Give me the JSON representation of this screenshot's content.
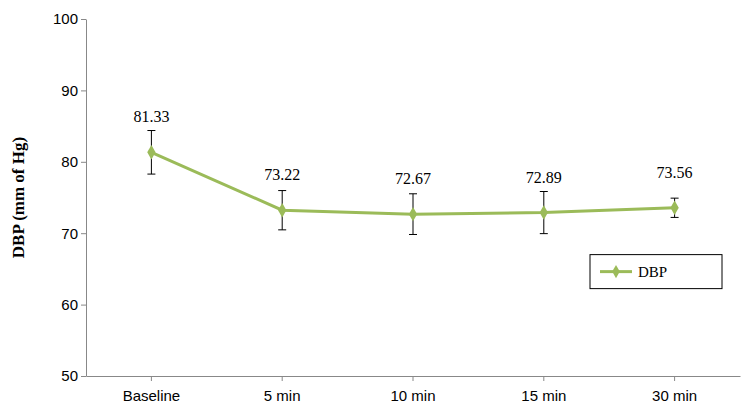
{
  "chart_data": {
    "type": "line",
    "y_label": "DBP (mm of Hg)",
    "categories": [
      "Baseline",
      "5 min",
      "10 min",
      "15 min",
      "30 min"
    ],
    "series": [
      {
        "name": "DBP",
        "color": "#9bbb59",
        "marker": "diamond",
        "values": [
          81.33,
          73.22,
          72.67,
          72.89,
          73.56
        ],
        "errors": [
          3.05,
          2.75,
          2.85,
          2.95,
          1.35
        ]
      }
    ],
    "ylim": [
      50,
      100
    ],
    "yticks": [
      50,
      60,
      70,
      80,
      90,
      100
    ],
    "grid": false,
    "legend": "right",
    "data_labels": true
  }
}
